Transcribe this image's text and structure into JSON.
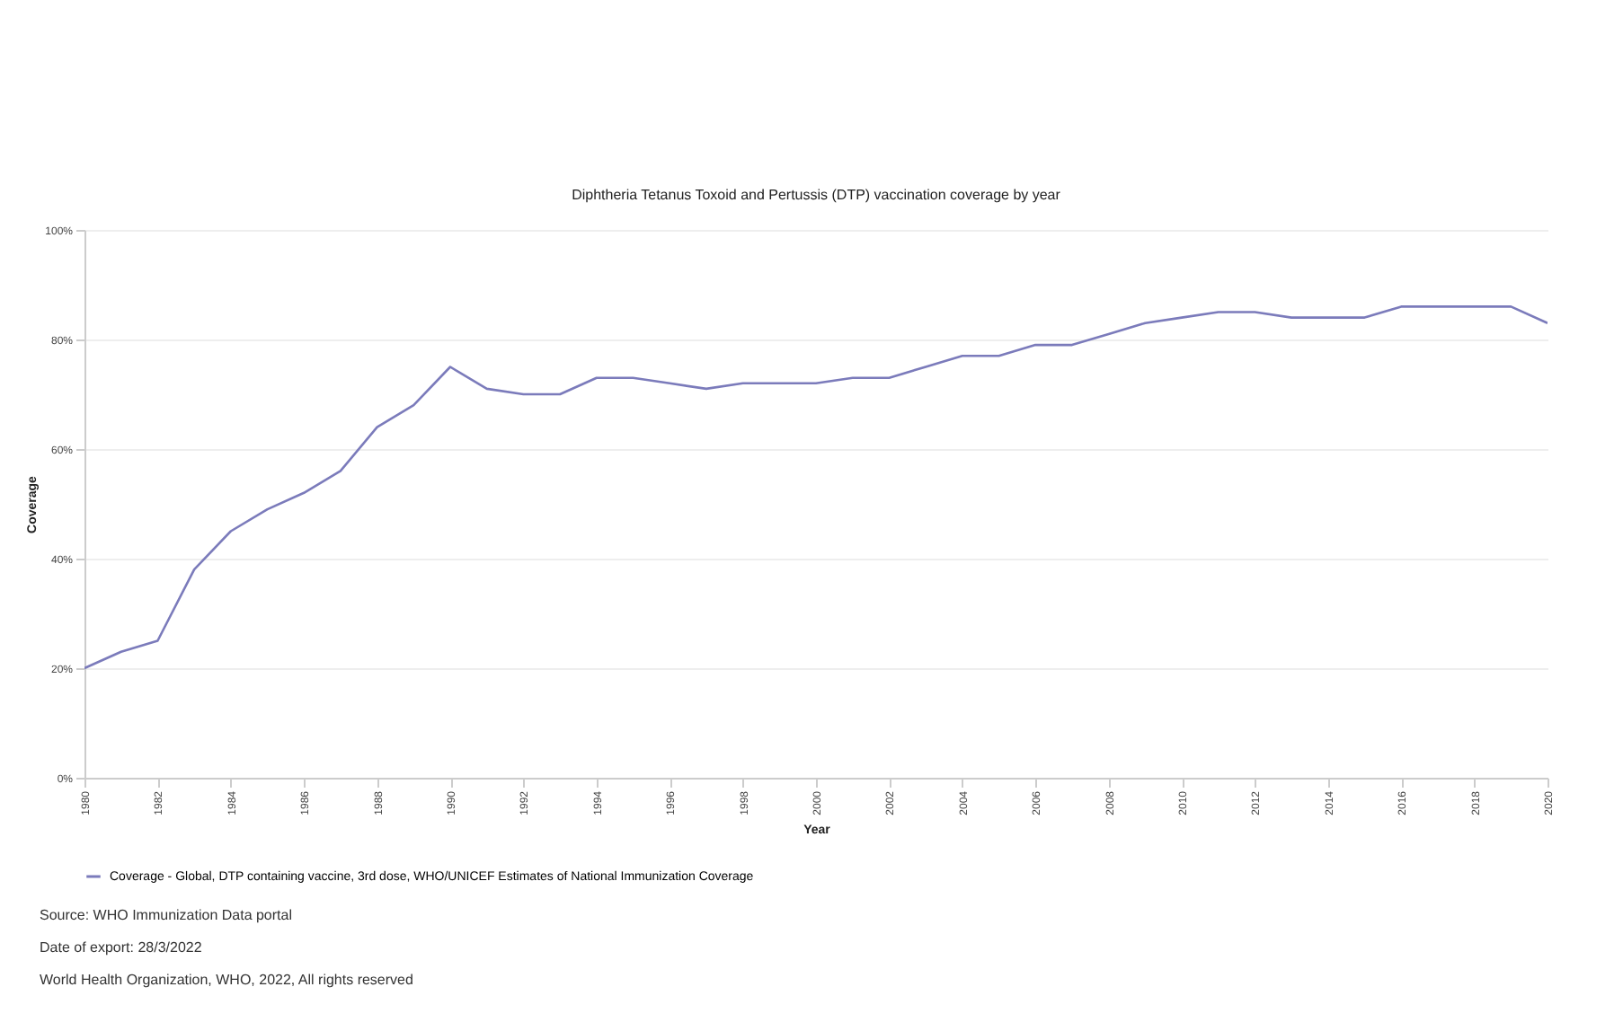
{
  "chart_data": {
    "type": "line",
    "title": "Diphtheria Tetanus Toxoid and Pertussis (DTP) vaccination coverage by year",
    "xlabel": "Year",
    "ylabel": "Coverage",
    "x": [
      1980,
      1981,
      1982,
      1983,
      1984,
      1985,
      1986,
      1987,
      1988,
      1989,
      1990,
      1991,
      1992,
      1993,
      1994,
      1995,
      1996,
      1997,
      1998,
      1999,
      2000,
      2001,
      2002,
      2003,
      2004,
      2005,
      2006,
      2007,
      2008,
      2009,
      2010,
      2011,
      2012,
      2013,
      2014,
      2015,
      2016,
      2017,
      2018,
      2019,
      2020
    ],
    "series": [
      {
        "name": "Coverage - Global, DTP containing vaccine, 3rd dose, WHO/UNICEF Estimates of National Immunization Coverage",
        "color": "#7b7bbb",
        "values": [
          20,
          23,
          25,
          38,
          45,
          49,
          52,
          56,
          64,
          68,
          75,
          71,
          70,
          70,
          73,
          73,
          72,
          71,
          72,
          72,
          72,
          73,
          73,
          75,
          77,
          77,
          79,
          79,
          81,
          83,
          84,
          85,
          85,
          84,
          84,
          84,
          86,
          86,
          86,
          86,
          83
        ]
      }
    ],
    "xlim": [
      1980,
      2020
    ],
    "xticks": [
      1980,
      1982,
      1984,
      1986,
      1988,
      1990,
      1992,
      1994,
      1996,
      1998,
      2000,
      2002,
      2004,
      2006,
      2008,
      2010,
      2012,
      2014,
      2016,
      2018,
      2020
    ],
    "ylim": [
      0,
      100
    ],
    "yticks": [
      {
        "value": 0,
        "label": "0%"
      },
      {
        "value": 20,
        "label": "20%"
      },
      {
        "value": 40,
        "label": "40%"
      },
      {
        "value": 60,
        "label": "60%"
      },
      {
        "value": 80,
        "label": "80%"
      },
      {
        "value": 100,
        "label": "100%"
      }
    ],
    "grid": "y",
    "legend": "bottom",
    "marker": "none",
    "line_style": "solid",
    "annotations": [
      "Source: WHO Immunization Data portal",
      "Date of export: 28/3/2022",
      "World Health Organization, WHO, 2022, All rights reserved"
    ]
  }
}
